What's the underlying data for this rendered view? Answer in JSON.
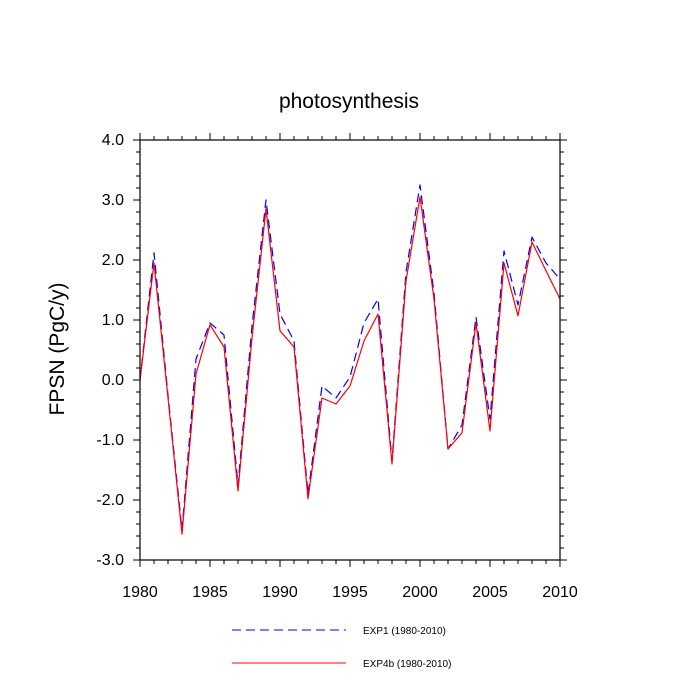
{
  "chart_data": {
    "type": "line",
    "title": "photosynthesis",
    "ylabel": "FPSN  (PgC/y)",
    "xlabel": "",
    "xlim": [
      1980,
      2010
    ],
    "ylim": [
      -3.0,
      4.0
    ],
    "x_ticks": [
      1980,
      1985,
      1990,
      1995,
      2000,
      2005,
      2010
    ],
    "x_tick_labels": [
      "1980",
      "1985",
      "1990",
      "1995",
      "2000",
      "2005",
      "2010"
    ],
    "y_ticks": [
      -3.0,
      -2.0,
      -1.0,
      0.0,
      1.0,
      2.0,
      3.0,
      4.0
    ],
    "y_tick_labels": [
      "-3.0",
      "-2.0",
      "-1.0",
      "0.0",
      "1.0",
      "2.0",
      "3.0",
      "4.0"
    ],
    "grid": false,
    "legend_position": "bottom",
    "x": [
      1980,
      1981,
      1982,
      1983,
      1984,
      1985,
      1986,
      1987,
      1988,
      1989,
      1990,
      1991,
      1992,
      1993,
      1994,
      1995,
      1996,
      1997,
      1998,
      1999,
      2000,
      2001,
      2002,
      2003,
      2004,
      2005,
      2006,
      2007,
      2008,
      2009,
      2010
    ],
    "series": [
      {
        "name": "EXP1 (1980-2010)",
        "color": "#0000ff",
        "dash": "dashed",
        "values": [
          0.0,
          2.12,
          -0.25,
          -2.5,
          0.35,
          0.95,
          0.75,
          -1.75,
          0.9,
          3.0,
          1.1,
          0.65,
          -1.9,
          -0.1,
          -0.3,
          0.05,
          0.95,
          1.35,
          -1.35,
          1.8,
          3.25,
          1.45,
          -1.15,
          -0.75,
          1.05,
          -0.65,
          2.15,
          1.25,
          2.38,
          1.95,
          1.68
        ]
      },
      {
        "name": "EXP4b (1980-2010)",
        "color": "#ff0000",
        "dash": "solid",
        "values": [
          0.0,
          1.95,
          -0.3,
          -2.57,
          0.1,
          0.92,
          0.55,
          -1.85,
          0.7,
          2.85,
          0.82,
          0.55,
          -1.98,
          -0.3,
          -0.4,
          -0.1,
          0.65,
          1.1,
          -1.4,
          1.65,
          3.05,
          1.35,
          -1.15,
          -0.88,
          0.95,
          -0.85,
          1.95,
          1.07,
          2.3,
          1.82,
          1.35
        ]
      }
    ]
  }
}
